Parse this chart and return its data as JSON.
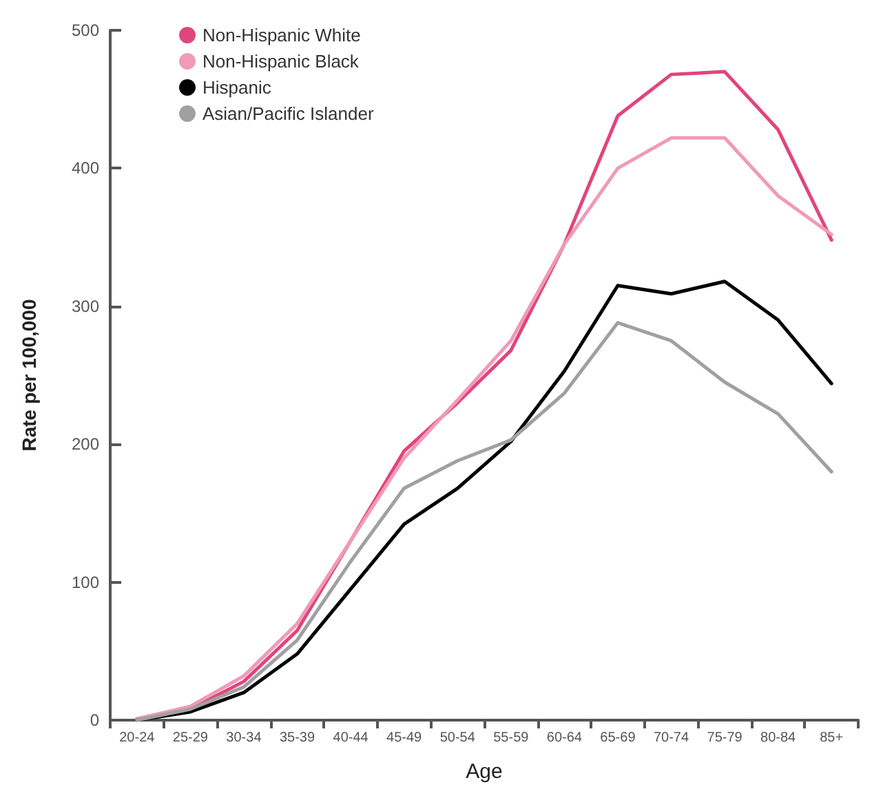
{
  "chart_data": {
    "type": "line",
    "xlabel": "Age",
    "ylabel": "Rate per 100,000",
    "categories": [
      "20-24",
      "25-29",
      "30-34",
      "35-39",
      "40-44",
      "45-49",
      "50-54",
      "55-59",
      "60-64",
      "65-69",
      "70-74",
      "75-79",
      "80-84",
      "85+"
    ],
    "series": [
      {
        "name": "Non-Hispanic White",
        "color": "#e0457b",
        "values": [
          1,
          8,
          28,
          65,
          130,
          195,
          230,
          268,
          345,
          438,
          468,
          470,
          428,
          348
        ]
      },
      {
        "name": "Non-Hispanic Black",
        "color": "#f09ab8",
        "values": [
          1,
          10,
          32,
          70,
          130,
          190,
          232,
          275,
          345,
          400,
          422,
          422,
          380,
          352
        ]
      },
      {
        "name": "Hispanic",
        "color": "#000000",
        "values": [
          0,
          6,
          20,
          48,
          95,
          142,
          168,
          202,
          253,
          315,
          309,
          318,
          290,
          244
        ]
      },
      {
        "name": "Asian/Pacific Islander",
        "color": "#a0a0a0",
        "values": [
          0,
          8,
          24,
          58,
          115,
          168,
          188,
          203,
          237,
          288,
          275,
          245,
          222,
          180
        ]
      }
    ],
    "ylim": [
      0,
      500
    ],
    "yticks": [
      0,
      100,
      200,
      300,
      400,
      500
    ],
    "grid": false,
    "legend": "top left",
    "marker": "none",
    "line_style": "solid"
  }
}
